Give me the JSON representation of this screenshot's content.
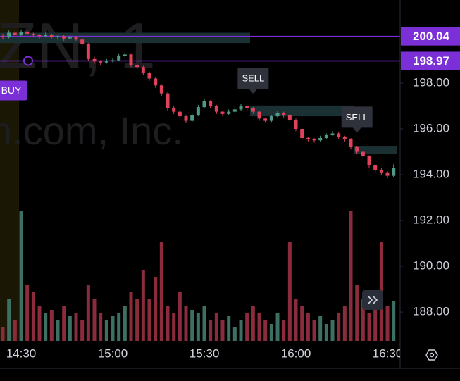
{
  "chart_data": {
    "type": "candlestick",
    "watermark": [
      "ZN, 1",
      "n.com, Inc."
    ],
    "categories": [
      null,
      null,
      null,
      "14:30",
      null,
      null,
      null,
      null,
      null,
      null,
      null,
      null,
      null,
      null,
      null,
      null,
      null,
      null,
      "15:00",
      null,
      null,
      null,
      null,
      null,
      null,
      null,
      null,
      null,
      null,
      null,
      null,
      null,
      null,
      "15:30",
      null,
      null,
      null,
      null,
      null,
      null,
      null,
      null,
      null,
      null,
      null,
      null,
      null,
      null,
      "16:00",
      null,
      null,
      null,
      null,
      null,
      null,
      null,
      null,
      null,
      null,
      null,
      null,
      null,
      null,
      "16:30",
      null
    ],
    "open": [
      200.05,
      200.0,
      200.2,
      200.1,
      200.25,
      200.15,
      200.1,
      200.05,
      200.1,
      200.0,
      200.05,
      199.95,
      200.0,
      199.9,
      199.7,
      199.05,
      198.95,
      198.9,
      198.95,
      199.0,
      199.2,
      199.25,
      198.8,
      198.7,
      198.45,
      198.2,
      197.9,
      197.55,
      196.9,
      196.75,
      196.55,
      196.35,
      196.6,
      196.95,
      197.2,
      197.0,
      196.75,
      196.65,
      196.75,
      196.85,
      197.0,
      196.9,
      196.75,
      196.45,
      196.35,
      196.55,
      196.7,
      196.6,
      196.4,
      196.0,
      195.6,
      195.55,
      195.5,
      195.6,
      195.75,
      195.8,
      195.65,
      195.55,
      195.2,
      195.0,
      194.8,
      194.4,
      194.2,
      194.1,
      193.95
    ],
    "high": [
      200.15,
      200.3,
      200.3,
      200.35,
      200.3,
      200.2,
      200.15,
      200.2,
      200.15,
      200.1,
      200.1,
      200.1,
      200.05,
      199.95,
      199.75,
      199.15,
      199.0,
      199.05,
      199.1,
      199.3,
      199.35,
      199.3,
      198.85,
      198.75,
      198.5,
      198.25,
      197.95,
      197.6,
      197.0,
      196.85,
      196.6,
      196.7,
      197.05,
      197.3,
      197.25,
      197.05,
      196.8,
      196.85,
      196.95,
      197.1,
      197.05,
      196.95,
      196.8,
      196.5,
      196.6,
      196.8,
      196.75,
      196.65,
      196.45,
      196.05,
      195.65,
      195.6,
      195.7,
      195.8,
      195.9,
      195.85,
      195.7,
      195.6,
      195.25,
      195.05,
      194.85,
      194.45,
      194.3,
      194.15,
      194.45
    ],
    "low": [
      199.9,
      199.95,
      200.05,
      200.05,
      200.1,
      200.0,
      199.95,
      200.0,
      199.95,
      199.9,
      199.85,
      199.9,
      199.85,
      199.6,
      198.95,
      198.85,
      198.8,
      198.85,
      198.9,
      198.95,
      199.1,
      198.7,
      198.6,
      198.35,
      198.1,
      197.8,
      197.45,
      196.8,
      196.65,
      196.45,
      196.25,
      196.3,
      196.55,
      196.9,
      196.9,
      196.65,
      196.55,
      196.6,
      196.7,
      196.8,
      196.8,
      196.65,
      196.35,
      196.3,
      196.3,
      196.5,
      196.5,
      196.3,
      195.9,
      195.5,
      195.45,
      195.4,
      195.45,
      195.55,
      195.7,
      195.55,
      195.45,
      195.1,
      194.9,
      194.7,
      194.3,
      194.1,
      194.0,
      193.85,
      193.9
    ],
    "close": [
      200.0,
      200.2,
      200.1,
      200.25,
      200.15,
      200.1,
      200.05,
      200.1,
      200.0,
      200.05,
      199.95,
      200.0,
      199.9,
      199.7,
      199.05,
      198.95,
      198.9,
      198.95,
      199.0,
      199.2,
      199.25,
      198.8,
      198.7,
      198.45,
      198.2,
      197.9,
      197.55,
      196.9,
      196.75,
      196.55,
      196.35,
      196.6,
      196.95,
      197.2,
      197.0,
      196.75,
      196.65,
      196.75,
      196.85,
      197.0,
      196.9,
      196.75,
      196.45,
      196.35,
      196.55,
      196.7,
      196.6,
      196.4,
      196.0,
      195.6,
      195.55,
      195.5,
      195.6,
      195.75,
      195.8,
      195.65,
      195.55,
      195.2,
      195.0,
      194.8,
      194.4,
      194.2,
      194.1,
      193.95,
      194.3
    ],
    "volume": [
      10,
      30,
      15,
      92,
      40,
      35,
      25,
      20,
      22,
      15,
      25,
      18,
      20,
      15,
      40,
      30,
      20,
      15,
      18,
      20,
      25,
      35,
      30,
      50,
      30,
      45,
      70,
      25,
      20,
      35,
      25,
      22,
      20,
      25,
      15,
      20,
      15,
      18,
      10,
      15,
      20,
      25,
      20,
      15,
      12,
      20,
      15,
      70,
      30,
      25,
      20,
      15,
      18,
      12,
      15,
      20,
      25,
      92,
      40,
      30,
      20,
      25,
      70,
      25,
      28
    ],
    "up_color": "#4f9a87",
    "down_color": "#e0425c",
    "volume_up_color": "#3d6f62",
    "volume_down_color": "#8a2c3c",
    "vlim": [
      0,
      100
    ],
    "ylim": [
      186.74,
      201.63
    ],
    "yticks": [
      {
        "value": 188,
        "label": "188.00"
      },
      {
        "value": 190,
        "label": "190.00"
      },
      {
        "value": 192,
        "label": "192.00"
      },
      {
        "value": 194,
        "label": "194.00"
      },
      {
        "value": 196,
        "label": "196.00"
      },
      {
        "value": 198,
        "label": "198.00"
      }
    ],
    "price_lines": [
      {
        "value": 200.04
      },
      {
        "value": 198.97,
        "order": "BUY"
      }
    ],
    "price_line_color": "#7b2fd6",
    "zones": [
      {
        "start": 0,
        "end": 40,
        "top": 200.2,
        "bottom": 199.75
      },
      {
        "start": 41,
        "end": 57,
        "top": 197.02,
        "bottom": 196.55
      },
      {
        "start": 58,
        "end": 64,
        "top": 195.23,
        "bottom": 194.89
      }
    ],
    "zone_color": "#1b3033",
    "markers": [
      {
        "label": "SELL",
        "index": 41
      },
      {
        "label": "SELL",
        "index": 58
      }
    ],
    "grid": false
  }
}
